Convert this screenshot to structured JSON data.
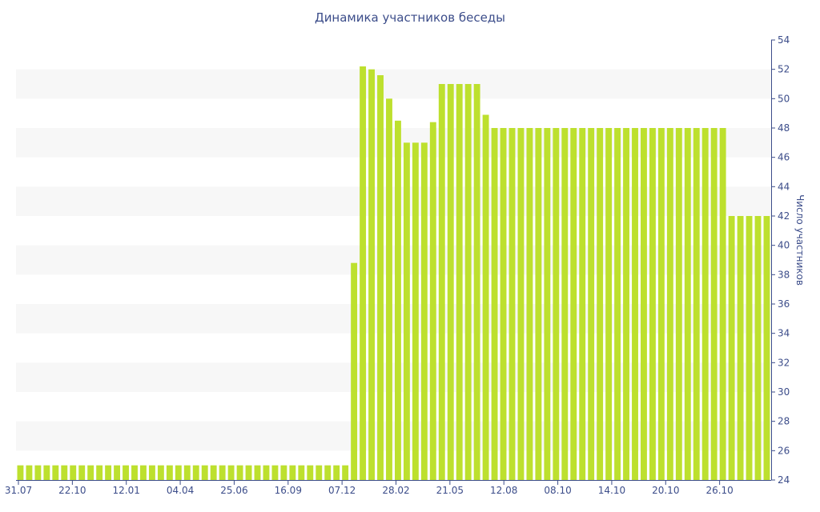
{
  "chart_data": {
    "type": "bar",
    "title": "Динамика участников беседы",
    "xlabel": "",
    "ylabel": "Число участников",
    "ylim": [
      24,
      54
    ],
    "y_ticks": [
      24,
      26,
      28,
      30,
      32,
      34,
      36,
      38,
      40,
      42,
      44,
      46,
      48,
      50,
      52,
      54
    ],
    "grid": "alternating horizontal bands",
    "legend": "none",
    "bar_color": "#bde02e",
    "band_color": "#f7f7f7",
    "axis_color": "#3c4d8a",
    "x_tick_labels": [
      "31.07",
      "22.10",
      "12.01",
      "04.04",
      "25.06",
      "16.09",
      "07.12",
      "28.02",
      "21.05",
      "12.08",
      "08.10",
      "14.10",
      "20.10",
      "26.10"
    ],
    "values": [
      25,
      25,
      25,
      25,
      25,
      25,
      25,
      25,
      25,
      25,
      25,
      25,
      25,
      25,
      25,
      25,
      25,
      25,
      25,
      25,
      25,
      25,
      25,
      25,
      25,
      25,
      25,
      25,
      25,
      25,
      25,
      25,
      25,
      25,
      25,
      25,
      25,
      25,
      38.8,
      52.2,
      52,
      51.6,
      50,
      48.5,
      47,
      47,
      47,
      48.4,
      51,
      51,
      51,
      51,
      51,
      48.9,
      48,
      48,
      48,
      48,
      48,
      48,
      48,
      48,
      48,
      48,
      48,
      48,
      48,
      48,
      48,
      48,
      48,
      48,
      48,
      48,
      48,
      48,
      48,
      48,
      48,
      48,
      48,
      42,
      42,
      42,
      42,
      42
    ]
  }
}
